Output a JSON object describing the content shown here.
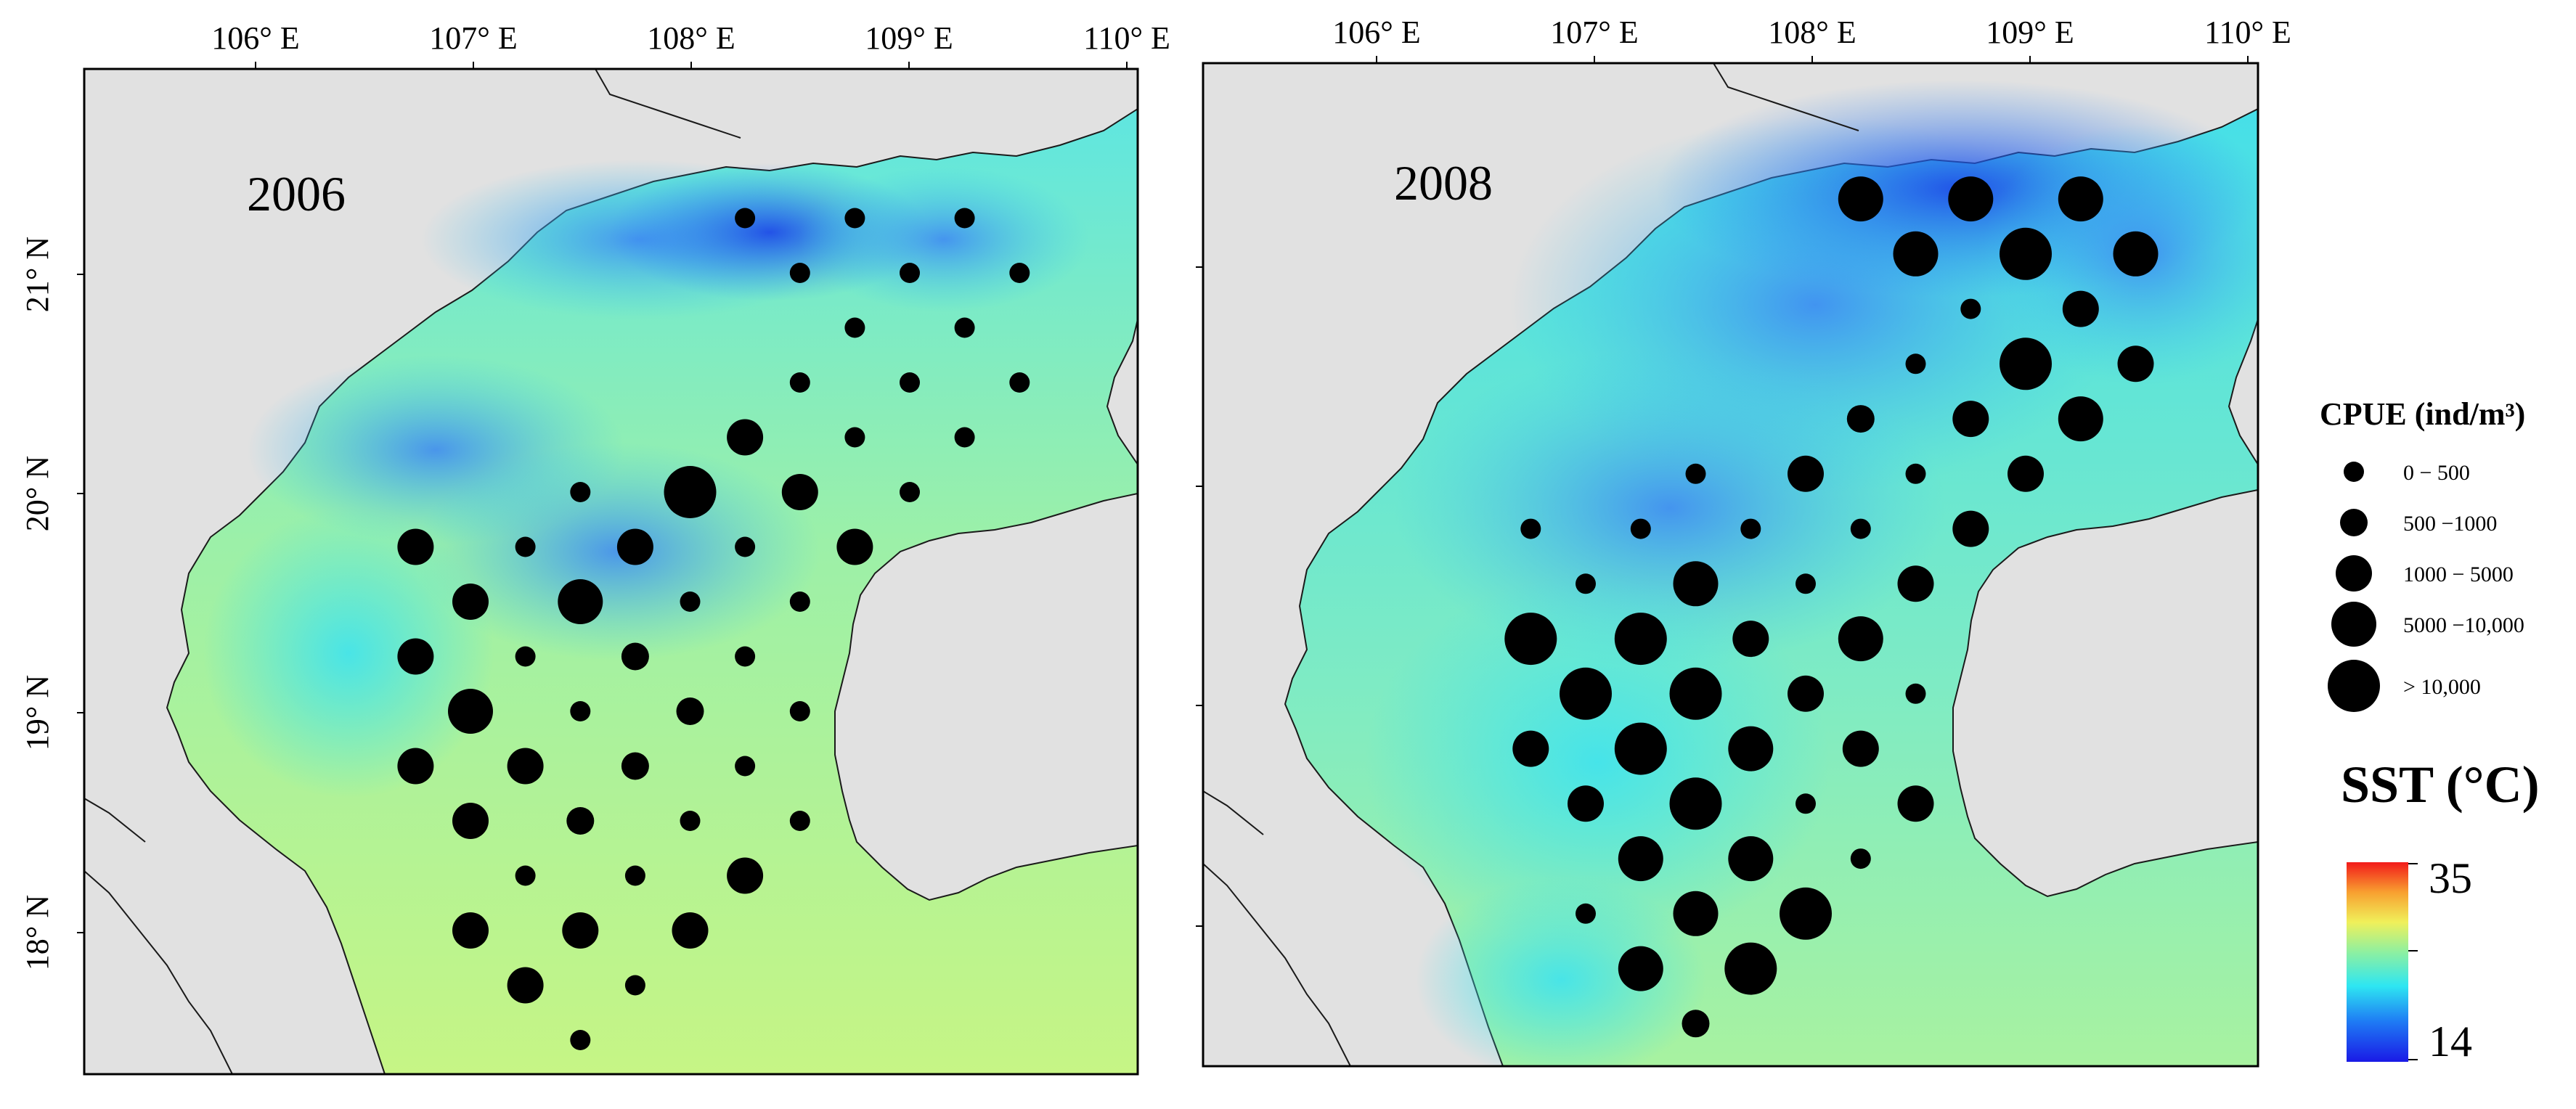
{
  "maps": [
    {
      "id": "map-2006",
      "year_label": "2006",
      "stations": [
        {
          "lon": 108.25,
          "lat": 21.25,
          "cls": 1
        },
        {
          "lon": 108.75,
          "lat": 21.25,
          "cls": 1
        },
        {
          "lon": 109.25,
          "lat": 21.25,
          "cls": 1
        },
        {
          "lon": 108.5,
          "lat": 21.0,
          "cls": 1
        },
        {
          "lon": 109.0,
          "lat": 21.0,
          "cls": 1
        },
        {
          "lon": 109.5,
          "lat": 21.0,
          "cls": 1
        },
        {
          "lon": 108.75,
          "lat": 20.75,
          "cls": 1
        },
        {
          "lon": 109.25,
          "lat": 20.75,
          "cls": 1
        },
        {
          "lon": 108.5,
          "lat": 20.5,
          "cls": 1
        },
        {
          "lon": 109.0,
          "lat": 20.5,
          "cls": 1
        },
        {
          "lon": 109.5,
          "lat": 20.5,
          "cls": 1
        },
        {
          "lon": 108.25,
          "lat": 20.25,
          "cls": 3
        },
        {
          "lon": 108.75,
          "lat": 20.25,
          "cls": 1
        },
        {
          "lon": 109.25,
          "lat": 20.25,
          "cls": 1
        },
        {
          "lon": 107.5,
          "lat": 20.0,
          "cls": 1
        },
        {
          "lon": 108.0,
          "lat": 20.0,
          "cls": 5
        },
        {
          "lon": 108.5,
          "lat": 20.0,
          "cls": 3
        },
        {
          "lon": 109.0,
          "lat": 20.0,
          "cls": 1
        },
        {
          "lon": 106.75,
          "lat": 19.75,
          "cls": 3
        },
        {
          "lon": 107.25,
          "lat": 19.75,
          "cls": 1
        },
        {
          "lon": 107.75,
          "lat": 19.75,
          "cls": 3
        },
        {
          "lon": 108.25,
          "lat": 19.75,
          "cls": 1
        },
        {
          "lon": 108.75,
          "lat": 19.75,
          "cls": 3
        },
        {
          "lon": 107.0,
          "lat": 19.5,
          "cls": 3
        },
        {
          "lon": 107.5,
          "lat": 19.5,
          "cls": 4
        },
        {
          "lon": 108.0,
          "lat": 19.5,
          "cls": 1
        },
        {
          "lon": 108.5,
          "lat": 19.5,
          "cls": 1
        },
        {
          "lon": 106.75,
          "lat": 19.25,
          "cls": 3
        },
        {
          "lon": 107.25,
          "lat": 19.25,
          "cls": 1
        },
        {
          "lon": 107.75,
          "lat": 19.25,
          "cls": 2
        },
        {
          "lon": 108.25,
          "lat": 19.25,
          "cls": 1
        },
        {
          "lon": 107.0,
          "lat": 19.0,
          "cls": 4
        },
        {
          "lon": 107.5,
          "lat": 19.0,
          "cls": 1
        },
        {
          "lon": 108.0,
          "lat": 19.0,
          "cls": 2
        },
        {
          "lon": 108.5,
          "lat": 19.0,
          "cls": 1
        },
        {
          "lon": 106.75,
          "lat": 18.75,
          "cls": 3
        },
        {
          "lon": 107.25,
          "lat": 18.75,
          "cls": 3
        },
        {
          "lon": 107.75,
          "lat": 18.75,
          "cls": 2
        },
        {
          "lon": 108.25,
          "lat": 18.75,
          "cls": 1
        },
        {
          "lon": 107.0,
          "lat": 18.5,
          "cls": 3
        },
        {
          "lon": 107.5,
          "lat": 18.5,
          "cls": 2
        },
        {
          "lon": 108.0,
          "lat": 18.5,
          "cls": 1
        },
        {
          "lon": 108.5,
          "lat": 18.5,
          "cls": 1
        },
        {
          "lon": 107.25,
          "lat": 18.25,
          "cls": 1
        },
        {
          "lon": 107.75,
          "lat": 18.25,
          "cls": 1
        },
        {
          "lon": 108.25,
          "lat": 18.25,
          "cls": 3
        },
        {
          "lon": 107.0,
          "lat": 18.0,
          "cls": 3
        },
        {
          "lon": 107.5,
          "lat": 18.0,
          "cls": 3
        },
        {
          "lon": 108.0,
          "lat": 18.0,
          "cls": 3
        },
        {
          "lon": 107.25,
          "lat": 17.75,
          "cls": 3
        },
        {
          "lon": 107.75,
          "lat": 17.75,
          "cls": 1
        },
        {
          "lon": 107.5,
          "lat": 17.5,
          "cls": 1
        }
      ]
    },
    {
      "id": "map-2008",
      "year_label": "2008",
      "stations": [
        {
          "lon": 108.25,
          "lat": 21.3,
          "cls": 4
        },
        {
          "lon": 108.75,
          "lat": 21.3,
          "cls": 4
        },
        {
          "lon": 109.25,
          "lat": 21.3,
          "cls": 4
        },
        {
          "lon": 108.5,
          "lat": 21.05,
          "cls": 4
        },
        {
          "lon": 109.0,
          "lat": 21.05,
          "cls": 5
        },
        {
          "lon": 109.5,
          "lat": 21.05,
          "cls": 4
        },
        {
          "lon": 108.75,
          "lat": 20.8,
          "cls": 1
        },
        {
          "lon": 109.25,
          "lat": 20.8,
          "cls": 3
        },
        {
          "lon": 108.5,
          "lat": 20.55,
          "cls": 1
        },
        {
          "lon": 109.0,
          "lat": 20.55,
          "cls": 5
        },
        {
          "lon": 109.5,
          "lat": 20.55,
          "cls": 3
        },
        {
          "lon": 108.25,
          "lat": 20.3,
          "cls": 2
        },
        {
          "lon": 108.75,
          "lat": 20.3,
          "cls": 3
        },
        {
          "lon": 109.25,
          "lat": 20.3,
          "cls": 4
        },
        {
          "lon": 107.5,
          "lat": 20.05,
          "cls": 1
        },
        {
          "lon": 108.0,
          "lat": 20.05,
          "cls": 3
        },
        {
          "lon": 108.5,
          "lat": 20.05,
          "cls": 1
        },
        {
          "lon": 109.0,
          "lat": 20.05,
          "cls": 3
        },
        {
          "lon": 106.75,
          "lat": 19.8,
          "cls": 1
        },
        {
          "lon": 107.25,
          "lat": 19.8,
          "cls": 1
        },
        {
          "lon": 107.75,
          "lat": 19.8,
          "cls": 1
        },
        {
          "lon": 108.25,
          "lat": 19.8,
          "cls": 1
        },
        {
          "lon": 108.75,
          "lat": 19.8,
          "cls": 3
        },
        {
          "lon": 107.0,
          "lat": 19.55,
          "cls": 1
        },
        {
          "lon": 107.5,
          "lat": 19.55,
          "cls": 4
        },
        {
          "lon": 108.0,
          "lat": 19.55,
          "cls": 1
        },
        {
          "lon": 108.5,
          "lat": 19.55,
          "cls": 3
        },
        {
          "lon": 106.75,
          "lat": 19.3,
          "cls": 5
        },
        {
          "lon": 107.25,
          "lat": 19.3,
          "cls": 5
        },
        {
          "lon": 107.75,
          "lat": 19.3,
          "cls": 3
        },
        {
          "lon": 108.25,
          "lat": 19.3,
          "cls": 4
        },
        {
          "lon": 107.0,
          "lat": 19.05,
          "cls": 5
        },
        {
          "lon": 107.5,
          "lat": 19.05,
          "cls": 5
        },
        {
          "lon": 108.0,
          "lat": 19.05,
          "cls": 3
        },
        {
          "lon": 108.5,
          "lat": 19.05,
          "cls": 1
        },
        {
          "lon": 106.75,
          "lat": 18.8,
          "cls": 3
        },
        {
          "lon": 107.25,
          "lat": 18.8,
          "cls": 5
        },
        {
          "lon": 107.75,
          "lat": 18.8,
          "cls": 4
        },
        {
          "lon": 108.25,
          "lat": 18.8,
          "cls": 3
        },
        {
          "lon": 107.0,
          "lat": 18.55,
          "cls": 3
        },
        {
          "lon": 107.5,
          "lat": 18.55,
          "cls": 5
        },
        {
          "lon": 108.0,
          "lat": 18.55,
          "cls": 1
        },
        {
          "lon": 108.5,
          "lat": 18.55,
          "cls": 3
        },
        {
          "lon": 107.25,
          "lat": 18.3,
          "cls": 4
        },
        {
          "lon": 107.75,
          "lat": 18.3,
          "cls": 4
        },
        {
          "lon": 108.25,
          "lat": 18.3,
          "cls": 1
        },
        {
          "lon": 107.0,
          "lat": 18.05,
          "cls": 1
        },
        {
          "lon": 107.5,
          "lat": 18.05,
          "cls": 4
        },
        {
          "lon": 108.0,
          "lat": 18.05,
          "cls": 5
        },
        {
          "lon": 107.25,
          "lat": 17.8,
          "cls": 4
        },
        {
          "lon": 107.75,
          "lat": 17.8,
          "cls": 5
        },
        {
          "lon": 107.5,
          "lat": 17.55,
          "cls": 2
        }
      ]
    }
  ],
  "lon_ticks": [
    "106° E",
    "107° E",
    "108° E",
    "109° E",
    "110° E"
  ],
  "lat_ticks": [
    "21° N",
    "20° N",
    "19° N",
    "18° N"
  ],
  "legend": {
    "cpue_title": "CPUE (ind/m³)",
    "cpue_classes": [
      "0 − 500",
      "500 −1000",
      "1000 − 5000",
      "5000 −10,000",
      "> 10,000"
    ],
    "sst_title": "SST (°C)",
    "sst_max": "35",
    "sst_min": "14"
  },
  "colors": {
    "land": "#e1e1e1",
    "sea_warm": "#c2f586",
    "sea_mid": "#3ee0f0",
    "sea_cool": "#2a7cf6",
    "sea_cold": "#1a3ae6",
    "dot": "#000000"
  }
}
